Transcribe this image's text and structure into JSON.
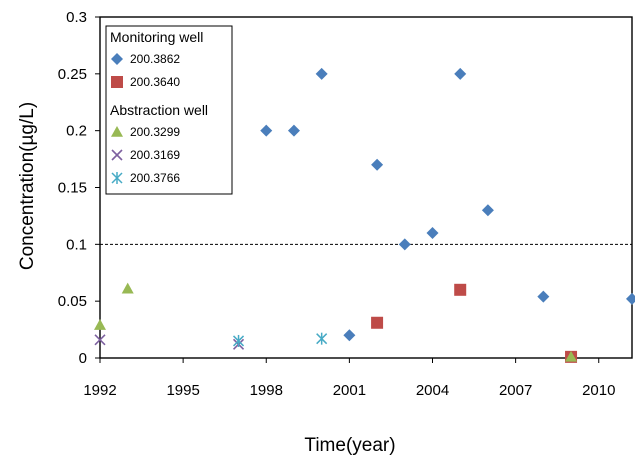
{
  "chart_data": {
    "type": "scatter",
    "title": "",
    "xlabel": "Time(year)",
    "ylabel": "Concentration(µg/L)",
    "xlim": [
      1992,
      2011.2
    ],
    "ylim": [
      0,
      0.3
    ],
    "xticks": [
      "1992",
      "1995",
      "1998",
      "2001",
      "2004",
      "2007",
      "2010"
    ],
    "yticks": [
      "0",
      "0.05",
      "0.1",
      "0.15",
      "0.2",
      "0.25",
      "0.3"
    ],
    "grid": false,
    "reference_line": {
      "y": 0.1,
      "style": "dashed"
    },
    "legend": {
      "placement": "top-left",
      "groups": [
        {
          "heading": "Monitoring well",
          "series": [
            "200.3862",
            "200.3640"
          ]
        },
        {
          "heading": "Abstraction well",
          "series": [
            "200.3299",
            "200.3169",
            "200.3766"
          ]
        }
      ]
    },
    "series": [
      {
        "name": "200.3862",
        "marker": "diamond",
        "color": "#4a7ebb",
        "points": [
          [
            1998,
            0.2
          ],
          [
            1999,
            0.2
          ],
          [
            2000,
            0.25
          ],
          [
            2001,
            0.02
          ],
          [
            2002,
            0.17
          ],
          [
            2003,
            0.1
          ],
          [
            2004,
            0.11
          ],
          [
            2005,
            0.25
          ],
          [
            2006,
            0.13
          ],
          [
            2008,
            0.054
          ],
          [
            2011.2,
            0.052
          ]
        ]
      },
      {
        "name": "200.3640",
        "marker": "square",
        "color": "#be4b48",
        "points": [
          [
            2002,
            0.031
          ],
          [
            2005,
            0.06
          ],
          [
            2009,
            0.001
          ]
        ]
      },
      {
        "name": "200.3299",
        "marker": "triangle",
        "color": "#98b954",
        "points": [
          [
            1992,
            0.029
          ],
          [
            1993,
            0.061
          ],
          [
            2009,
            0.001
          ]
        ]
      },
      {
        "name": "200.3169",
        "marker": "x",
        "color": "#7d60a0",
        "points": [
          [
            1992,
            0.016
          ],
          [
            1997,
            0.012
          ]
        ]
      },
      {
        "name": "200.3766",
        "marker": "star",
        "color": "#46aac5",
        "points": [
          [
            1997,
            0.015
          ],
          [
            2000,
            0.017
          ]
        ]
      }
    ]
  }
}
